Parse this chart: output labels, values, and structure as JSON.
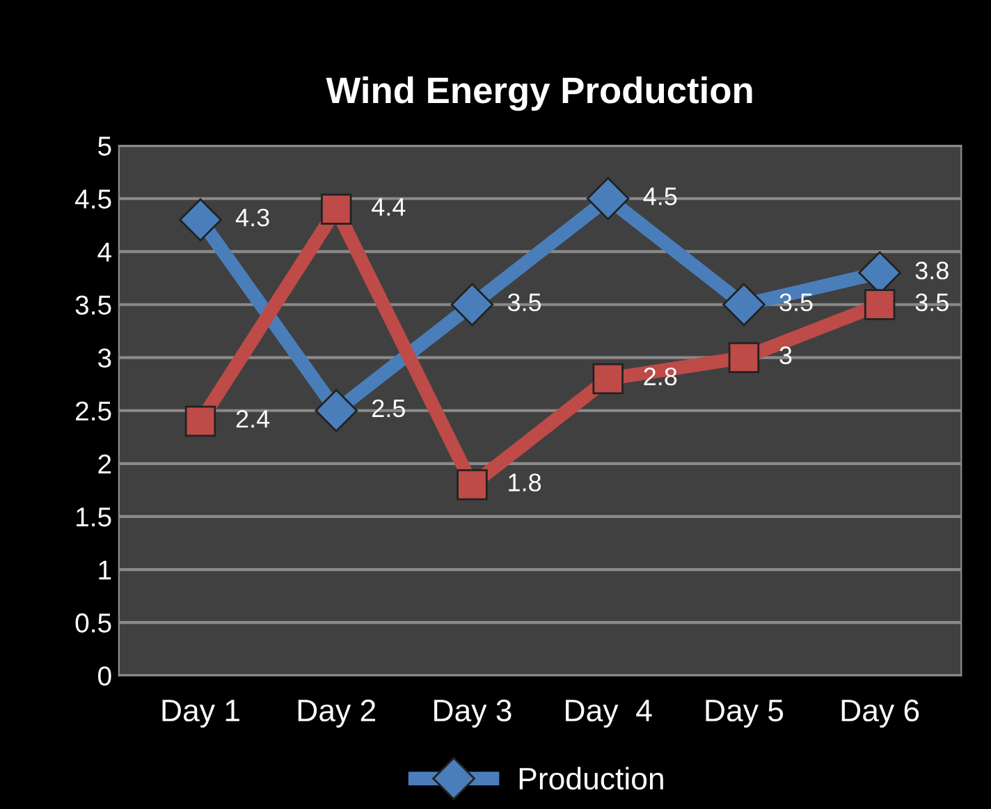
{
  "chart_data": {
    "type": "line",
    "title": "Wind Energy Production",
    "categories": [
      "Day 1",
      "Day 2",
      "Day 3",
      "Day  4",
      "Day 5",
      "Day 6"
    ],
    "series": [
      {
        "name": "Production",
        "color": "#4a7ebb",
        "values": [
          4.3,
          2.5,
          3.5,
          4.5,
          3.5,
          3.8
        ],
        "marker": "diamond"
      },
      {
        "color": "#be4b48",
        "values": [
          2.4,
          4.4,
          1.8,
          2.8,
          3,
          3.5
        ],
        "marker": "square"
      }
    ],
    "ylim": [
      0,
      5
    ],
    "yticks": [
      0,
      0.5,
      1,
      1.5,
      2,
      2.5,
      3,
      3.5,
      4,
      4.5,
      5
    ],
    "grid": "y",
    "legend": "bottom",
    "data_labels": true,
    "line_style": "solid"
  }
}
